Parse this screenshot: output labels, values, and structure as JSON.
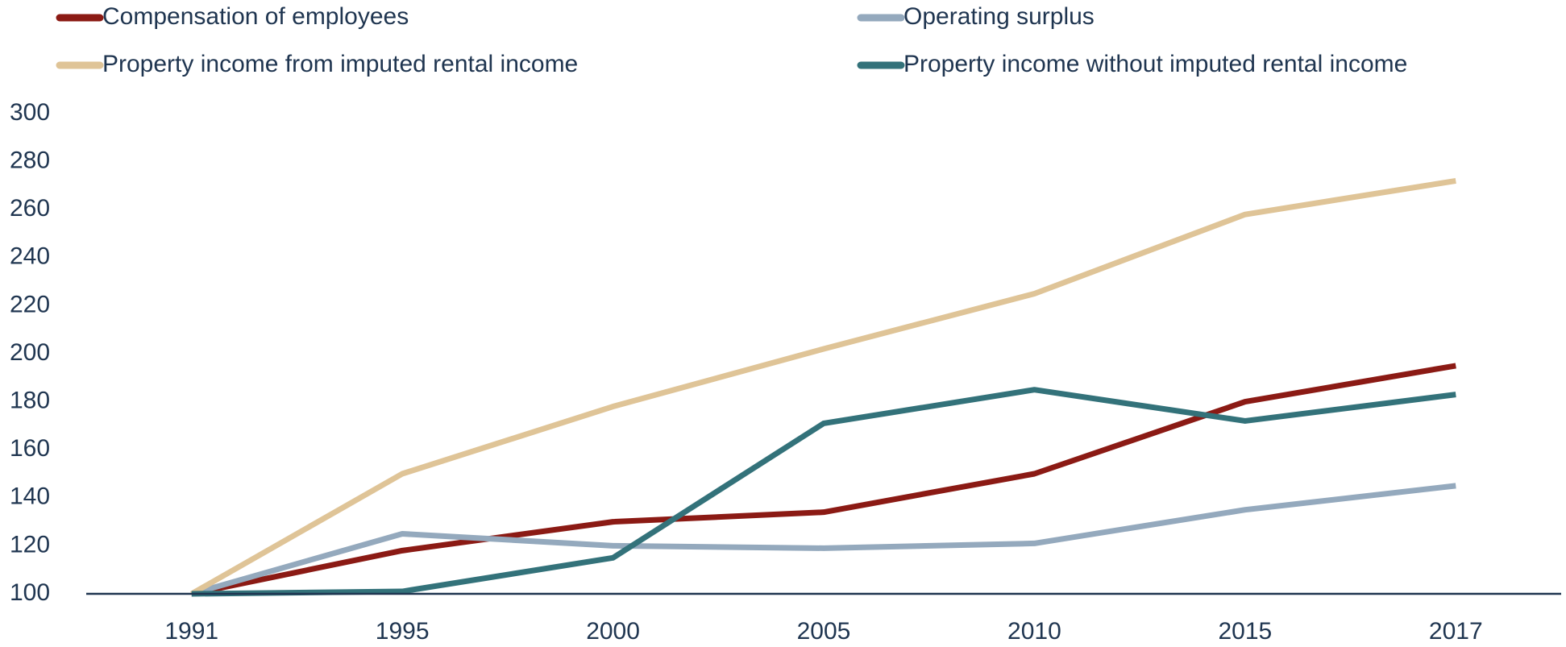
{
  "chart_data": {
    "type": "line",
    "categories": [
      "1991",
      "1995",
      "2000",
      "2005",
      "2010",
      "2015",
      "2017"
    ],
    "series": [
      {
        "name": "Compensation of employees",
        "color": "#8b1a14",
        "values": [
          100,
          118,
          130,
          134,
          150,
          180,
          195
        ]
      },
      {
        "name": "Operating surplus",
        "color": "#94a9bd",
        "values": [
          100,
          125,
          120,
          119,
          121,
          135,
          145
        ]
      },
      {
        "name": "Property income from imputed rental income",
        "color": "#dfc497",
        "values": [
          100,
          150,
          178,
          202,
          225,
          258,
          272
        ]
      },
      {
        "name": "Property income without imputed rental income",
        "color": "#33727a",
        "values": [
          100,
          101,
          115,
          171,
          185,
          172,
          183
        ]
      }
    ],
    "ylim": [
      100,
      300
    ],
    "yticks": [
      100,
      120,
      140,
      160,
      180,
      200,
      220,
      240,
      260,
      280,
      300
    ],
    "grid": false,
    "legend": "top"
  }
}
